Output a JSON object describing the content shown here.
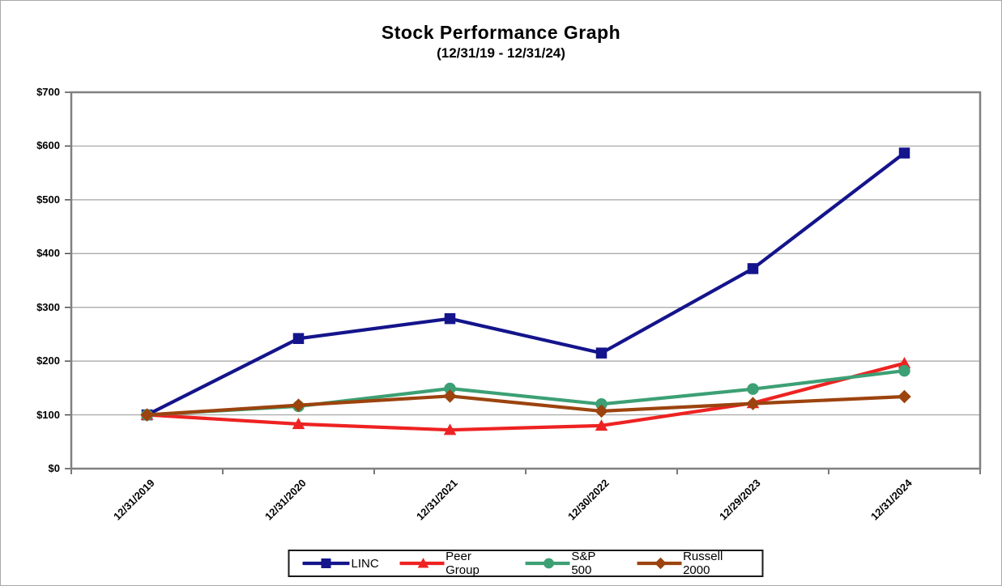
{
  "page": {
    "title": "Stock Performance Graph",
    "subtitle": "(12/31/19 - 12/31/24)"
  },
  "chart_data": {
    "type": "line",
    "title": "Stock Performance Graph",
    "subtitle": "(12/31/19 - 12/31/24)",
    "categories": [
      "12/31/2019",
      "12/31/2020",
      "12/31/2021",
      "12/30/2022",
      "12/29/2023",
      "12/31/2024"
    ],
    "series": [
      {
        "name": "LINC",
        "color": "#14148C",
        "marker": "square",
        "values": [
          100,
          242,
          279,
          215,
          372,
          587
        ]
      },
      {
        "name": "Peer Group",
        "color": "#EE2222",
        "marker": "triangle",
        "values": [
          100,
          83,
          72,
          80,
          122,
          196
        ]
      },
      {
        "name": "S&P 500",
        "color": "#3CA074",
        "marker": "circle",
        "values": [
          100,
          116,
          149,
          120,
          148,
          182
        ]
      },
      {
        "name": "Russell 2000",
        "color": "#9C430E",
        "marker": "diamond",
        "values": [
          100,
          118,
          135,
          107,
          121,
          134
        ]
      }
    ],
    "ylim": [
      0,
      700
    ],
    "y_tick_step": 100,
    "y_tick_labels": [
      "$0",
      "$100",
      "$200",
      "$300",
      "$400",
      "$500",
      "$600",
      "$700"
    ],
    "xlabel": "",
    "ylabel": "",
    "grid": true,
    "legend_position": "bottom",
    "frame_color": "#808080",
    "grid_color": "#a3a3a3",
    "tick_color": "#404040"
  }
}
